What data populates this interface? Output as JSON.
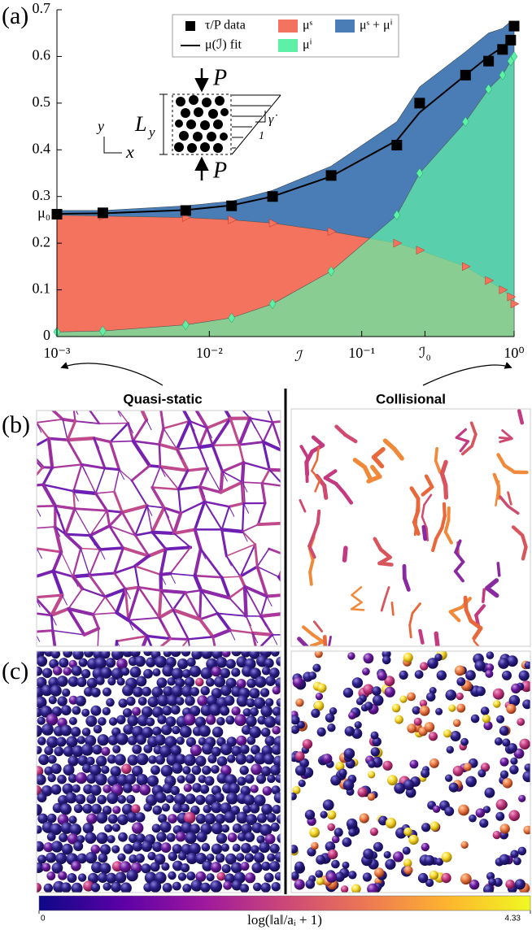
{
  "chart_data": {
    "type": "area",
    "panel_label": "(a)",
    "x_label": "ℐ",
    "log_x": true,
    "xlim": [
      0.001,
      1
    ],
    "xticks": [
      {
        "value": 0.001,
        "label": "10⁻³"
      },
      {
        "value": 0.01,
        "label": "10⁻²"
      },
      {
        "value": 0.1,
        "label": "10⁻¹"
      },
      {
        "value": 0.26,
        "label": "ℐ₀"
      },
      {
        "value": 1,
        "label": "10⁰"
      }
    ],
    "ylim": [
      0,
      0.7
    ],
    "yticks": [
      0,
      0.1,
      0.2,
      {
        "value": 0.262,
        "label": "μ₀"
      },
      0.3,
      0.4,
      0.5,
      0.6,
      0.7
    ],
    "legend": "upper center",
    "x": [
      0.001,
      0.002,
      0.007,
      0.014,
      0.026,
      0.063,
      0.17,
      0.24,
      0.48,
      0.68,
      0.84,
      0.95,
      1
    ],
    "series": [
      {
        "name": "τ/P data",
        "color": "#000000",
        "marker": "square",
        "values": [
          0.262,
          0.265,
          0.27,
          0.28,
          0.3,
          0.345,
          0.41,
          0.5,
          0.56,
          0.59,
          0.615,
          0.635,
          0.665
        ]
      },
      {
        "name": "μ(ℐ) fit",
        "color": "#000000",
        "values": [
          0.263,
          0.264,
          0.271,
          0.281,
          0.3,
          0.343,
          0.42,
          0.48,
          0.56,
          0.6,
          0.62,
          0.635,
          0.645
        ]
      },
      {
        "name": "μˢ",
        "color": "#f4735f",
        "marker": "triangle",
        "area": true,
        "values": [
          0.26,
          0.258,
          0.255,
          0.25,
          0.243,
          0.225,
          0.2,
          0.185,
          0.15,
          0.12,
          0.1,
          0.085,
          0.07
        ]
      },
      {
        "name": "μˢ + μⁱ",
        "color": "#4a7db5",
        "area": true,
        "stacked": true
      },
      {
        "name": "μⁱ",
        "color": "#5ff0a8",
        "marker": "diamond",
        "area": true,
        "values": [
          0.01,
          0.012,
          0.025,
          0.04,
          0.07,
          0.14,
          0.26,
          0.35,
          0.46,
          0.53,
          0.56,
          0.59,
          0.6
        ]
      }
    ]
  },
  "inset": {
    "top_load": "P",
    "bottom_load": "P",
    "height": "L",
    "height_sub": "y",
    "axis_y": "y",
    "axis_x": "x",
    "shear_rate": "γ̇",
    "slope": "1"
  },
  "regimes": {
    "left": "Quasi-static",
    "right": "Collisional"
  },
  "panels": {
    "b": "(b)",
    "c": "(c)"
  },
  "colorbar": {
    "ticks": [
      0,
      4.33
    ],
    "label": "log(‖a‖/aᵢ + 1)"
  }
}
